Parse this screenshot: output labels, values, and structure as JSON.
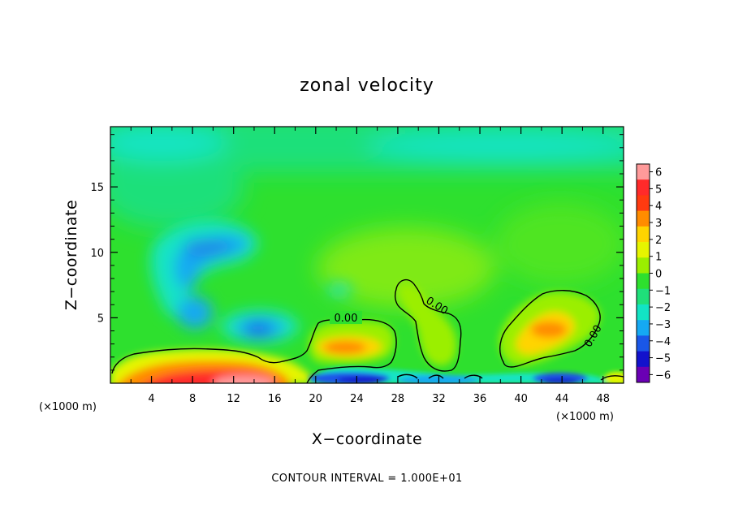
{
  "chart_data": {
    "type": "heatmap",
    "title": "zonal velocity",
    "xlabel": "X−coordinate",
    "ylabel": "Z−coordinate",
    "x_unit": "(×1000 m)",
    "x_ticks": [
      4,
      8,
      12,
      16,
      20,
      24,
      28,
      32,
      36,
      40,
      44,
      48
    ],
    "y_ticks": [
      5,
      10,
      15
    ],
    "xlim": [
      0,
      50
    ],
    "ylim": [
      0,
      19.6
    ],
    "colorbar": {
      "levels": [
        6,
        5,
        4,
        3,
        2,
        1,
        0,
        -1,
        -2,
        -3,
        -4,
        -5,
        -6
      ],
      "labels": [
        "6",
        "5",
        "4",
        "3",
        "2",
        "1",
        "0",
        "−1",
        "−2",
        "−3",
        "−4",
        "−5",
        "−6"
      ],
      "colors": [
        "#ff9a9a",
        "#ff2a2a",
        "#ff3a10",
        "#ff8c00",
        "#ffd400",
        "#e6f500",
        "#9bef00",
        "#2ee02e",
        "#1fe07a",
        "#12e4c4",
        "#15a9f3",
        "#1a57e8",
        "#1212cc",
        "#6a00b4"
      ],
      "placement": "right"
    },
    "contour_label": "0.00",
    "contour_label_count": 3,
    "note": "CONTOUR INTERVAL = 1.000E+01",
    "features": [
      {
        "kind": "min",
        "x": 9.5,
        "z": 10.5,
        "value": -2.6
      },
      {
        "kind": "min",
        "x": 8.0,
        "z": 6.0,
        "value": -2.3
      },
      {
        "kind": "min",
        "x": 14.5,
        "z": 4.3,
        "value": -3.3
      },
      {
        "kind": "min",
        "x": 23.0,
        "z": 7.0,
        "value": -1.6
      },
      {
        "kind": "max",
        "x": 11.0,
        "z": 0.3,
        "value": 6.0
      },
      {
        "kind": "max",
        "x": 23.0,
        "z": 2.8,
        "value": 3.0
      },
      {
        "kind": "max",
        "x": 43.0,
        "z": 4.5,
        "value": 3.5
      },
      {
        "kind": "min",
        "x": 24.0,
        "z": 0.3,
        "value": -4.5
      },
      {
        "kind": "min",
        "x": 43.5,
        "z": 0.3,
        "value": -4.0
      }
    ]
  }
}
